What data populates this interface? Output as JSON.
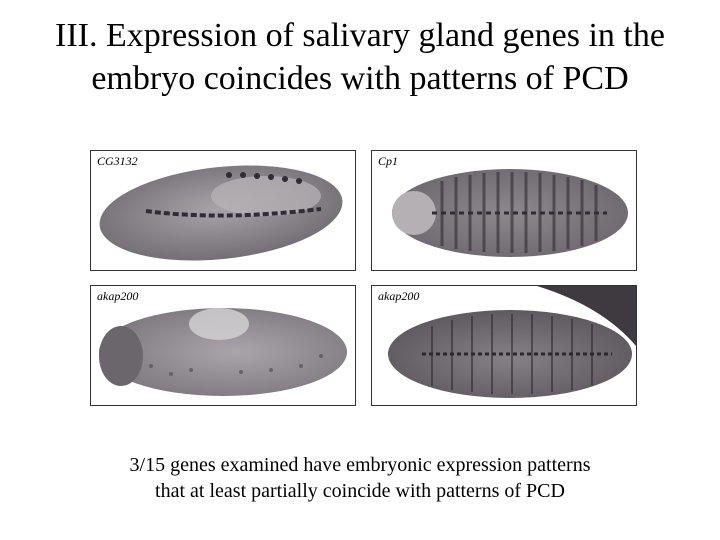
{
  "slide": {
    "title_line1": "III. Expression of salivary gland genes in the",
    "title_line2": "embryo coincides with patterns of PCD",
    "caption_line1": "3/15 genes examined have embryonic expression patterns",
    "caption_line2": "that at least partially coincide with patterns of PCD"
  },
  "panels": [
    {
      "label": "CG3132"
    },
    {
      "label": "Cp1"
    },
    {
      "label": "akap200"
    },
    {
      "label": "akap200"
    }
  ],
  "colors": {
    "background": "#ffffff",
    "embryo_fill": "#8f8a8f",
    "stain": "#2f2c33"
  }
}
